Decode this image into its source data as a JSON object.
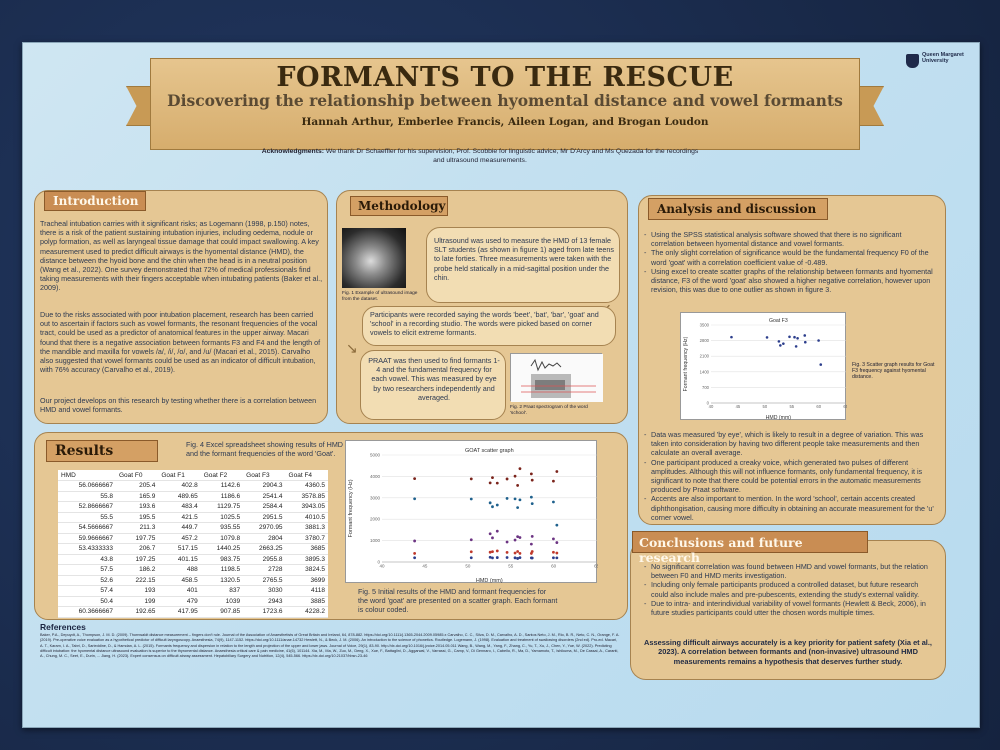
{
  "header": {
    "title": "FORMANTS TO THE RESCUE",
    "subtitle": "Discovering the relationship between hyomental distance and vowel formants",
    "authors": "Hannah Arthur, Emberlee Francis, Aileen Logan, and Brogan Loudon",
    "logo": "Queen Margaret University",
    "ack_label": "Acknowledgments:",
    "ack_text": "We thank Dr Schaeffler for his supervision, Prof. Scobbie for linguistic advice,  Mr D'Arcy and Ms Quezada for the recordings and ultrasound measurements."
  },
  "intro": {
    "heading": "Introduction",
    "p1": "Tracheal intubation carries with it significant risks; as Logemann (1998, p.150) notes, there is a risk of the patient sustaining intubation injuries, including oedema, nodule or polyp formation, as well as laryngeal tissue damage that could impact swallowing. A key measurement used to predict difficult airways is the hyomental distance (HMD), the distance between the hyoid bone and the chin when the head is in a neutral position (Wang et al., 2022). One survey demonstrated that 72% of medical professionals find taking measurements with their fingers acceptable when intubating patients (Baker et al., 2009).",
    "p2": "Due to the risks associated with poor intubation placement, research has been carried out to ascertain if factors such as vowel formants, the resonant frequencies of the vocal tract, could be used as a predictor of anatomical features in the upper airway.  Macari found that there is a negative association between formants F3 and F4 and the length of the mandible and maxilla for vowels /a/, /i/, /o/, and /u/ (Macari et al., 2015). Carvalho also suggested that vowel formants could be used as an indicator of difficult intubation, with 76% accuracy (Carvalho et al., 2019).",
    "p3": "Our project develops on this research by testing whether there is a correlation between HMD and vowel formants."
  },
  "methodology": {
    "heading": "Methodology",
    "box1": "Ultrasound was used to measure the HMD of 13 female SLT students (as shown in figure 1) aged from late teens to late forties. Three measurements were taken with the probe held statically in a mid-sagittal position under the chin.",
    "fig1_caption": "Fig. 1  Example of ultrasound image from the dataset.",
    "box2": "Participants were recorded saying the words 'beet', 'bat', 'bar', 'goat' and 'school' in a recording studio. The words were picked based on corner vowels to elicit extreme formants.",
    "box3": "PRAAT was then used to find formants 1-4 and the fundamental frequency for each vowel. This was measured by eye by two researchers independently and averaged.",
    "fig2_caption": "Fig. 2 Praat spectrogram of the word 'school'."
  },
  "results": {
    "heading": "Results",
    "fig4_caption": "Fig. 4  Excel spreadsheet showing results of HMD and the formant frequencies of the word 'Goat'.",
    "fig5_caption": "Fig. 5 Initial results of the HMD and formant frequencies for the word 'goat' are presented on a scatter graph. Each formant is colour coded.",
    "table": {
      "headers": [
        "HMD",
        "Goat F0",
        "Goat F1",
        "Goat F2",
        "Goat F3",
        "Goat F4"
      ],
      "rows": [
        [
          "56.0666667",
          "205.4",
          "402.8",
          "1142.6",
          "2904.3",
          "4360.5"
        ],
        [
          "55.8",
          "165.9",
          "489.65",
          "1186.6",
          "2541.4",
          "3578.85"
        ],
        [
          "52.8666667",
          "193.6",
          "483.4",
          "1129.75",
          "2584.4",
          "3943.05"
        ],
        [
          "55.5",
          "195.5",
          "421.5",
          "1025.5",
          "2951.5",
          "4010.5"
        ],
        [
          "54.5666667",
          "211.3",
          "449.7",
          "935.55",
          "2970.95",
          "3881.3"
        ],
        [
          "59.9666667",
          "197.75",
          "457.2",
          "1079.8",
          "2804",
          "3780.7"
        ],
        [
          "53.4333333",
          "206.7",
          "517.15",
          "1440.25",
          "2663.25",
          "3685"
        ],
        [
          "43.8",
          "197.25",
          "401.15",
          "983.75",
          "2955.8",
          "3895.3"
        ],
        [
          "57.5",
          "186.2",
          "488",
          "1198.5",
          "2728",
          "3824.5"
        ],
        [
          "52.6",
          "222.15",
          "458.5",
          "1320.5",
          "2765.5",
          "3699"
        ],
        [
          "57.4",
          "193",
          "401",
          "837",
          "3030",
          "4118"
        ],
        [
          "50.4",
          "199",
          "479",
          "1039",
          "2943",
          "3885"
        ],
        [
          "60.3666667",
          "192.65",
          "417.95",
          "907.85",
          "1723.6",
          "4228.2"
        ]
      ]
    }
  },
  "analysis": {
    "heading": "Analysis and discussion",
    "b1": "Using the SPSS statistical analysis software showed that there is no significant correlation between hyomental distance and vowel formants.",
    "b2": "The only slight correlation of significance would be the fundamental frequency F0 of the word 'goat' with a correlation coefficient value of -0.489.",
    "b3": "Using excel to create scatter graphs of the relationship between formants and hyomental distance, F3 of the word 'goat' also showed a higher negative correlation, however upon revision, this was due to one outlier as shown in figure 3.",
    "fig3_caption": "Fig. 3 Scatter graph results for Goat F3 frequency against hyomental distance.",
    "b4": "Data was measured 'by eye', which is likely to result in a degree of variation. This was taken into consideration by having two different people take measurements and then calculate an overall average.",
    "b5": "One participant produced a creaky voice, which generated two pulses of different amplitudes. Although this will not influence formants, only fundamental frequency, it is significant to note that there could be potential errors in the automatic measurements produced by Praat software.",
    "b6": "Accents are also important to mention. In the word 'school', certain accents created diphthongisation, causing more difficulty in obtaining an accurate measurement for the 'u' corner vowel."
  },
  "conclusions": {
    "heading": "Conclusions and future research",
    "b1": "No significant correlation was found between HMD and vowel formants, but the relation between F0 and HMD merits investigation.",
    "b2": "Including only female participants produced a controlled dataset, but future research could also include males and pre-pubescents, extending the study's external validity.",
    "b3": "Due to intra- and interindividual variability of vowel formants (Hewlett & Beck, 2006), in future studies participants could utter the chosen words multiple times.",
    "final": "Assessing difficult airways accurately is a key priority for patient safety (Xia et al., 2023). A correlation between formants and (non-invasive) ultrasound HMD measurements remains a hypothesis that deserves further study."
  },
  "references": {
    "heading": "References",
    "body": "Baker, P.A., Depuydt, A., Thompson, J. M. D. (2009). Thornwaldt distance measurement – fingers don't rule. Journal of the Association of Anaesthetists of Great Britain and Ireland, 64, 878-882. https://doi.org/10.1111/j.1365-2044.2009.05985.x  Carvalho, C. C., Silva, D. M., Carvalho, A. D., Santos Neto, J. M., Rio, B. R., Neto, C. N., Orange, F. A. (2019). Pre-operative voice evaluation as a hypothetical predictor of difficult laryngoscopy. Anaesthesia, 74(9), 1147-1152. https://doi.org/10.1111/anae.14732  Hewlett, N., & Beck, J. M. (2006). An introduction to the science of phonetics. Routledge.  Logemann, J. (1998). Evaluation and treatment of swallowing disorders (2nd ed). Pro-ed.  Macari, A. T., Karam, I. A., Tabri, D., Sarieddine, D., & Hamdan, A. L. (2015). Formants frequency and dispersion in relation to the length and projection of the upper and lower jaws. Journal of Voice, 29(1), 83-90. http://dx.doi.org/10.1016/j.jvoice.2014.05.011  Wang, B., Wang, M., Yang, F., Zhang, C., Yu, T., Xu, J., Chen, Y., Yue, W. (2022). Predicting difficult intubation: the hyomental distance ultrasound evaluation is superior to the thyromental distance. Anaesthesia critical care & pain medicine, 41(6), 101144.  Xia, M., Ma, W., Zuo, M., Deng, X., Xue, F., Battaglini, D., Aggarwal, V., Varrassi, G., Camp, V., Di Gennaro, I., Cabello, R., Ma, D., Yamamoto, T., Ishikuma, M., De Cassai, A., Caranti, A., Chung, M. C., Seet, E., Durin, ... Jiang, H. (2023). Expert consensus on difficult airway assessment. Hepatobiliary Surgery and Nutrition, 12(4), 545-566. https://dx.doi.org/10.21037/hbsn-23-46"
  },
  "chart_data": [
    {
      "type": "scatter",
      "title": "GOAT scatter graph",
      "xlabel": "HMD (mm)",
      "ylabel": "Formant frequency (Hz)",
      "ylim": [
        0,
        5000
      ],
      "xlim": [
        40,
        65
      ],
      "grid": true,
      "legend": "bottom",
      "series": [
        {
          "color": "#2c3e8c",
          "x": [
            56.07,
            55.8,
            52.87,
            55.5,
            54.57,
            59.97,
            53.43,
            43.8,
            57.5,
            52.6,
            57.4,
            50.4,
            60.37
          ],
          "y": [
            205.4,
            165.9,
            193.6,
            195.5,
            211.3,
            197.75,
            206.7,
            197.25,
            186.2,
            222.15,
            193,
            199,
            192.65
          ]
        },
        {
          "color": "#c0392b",
          "x": [
            56.07,
            55.8,
            52.87,
            55.5,
            54.57,
            59.97,
            53.43,
            43.8,
            57.5,
            52.6,
            57.4,
            50.4,
            60.37
          ],
          "y": [
            402.8,
            489.65,
            483.4,
            421.5,
            449.7,
            457.2,
            517.15,
            401.15,
            488,
            458.5,
            401,
            479,
            417.95
          ]
        },
        {
          "color": "#6c3483",
          "x": [
            56.07,
            55.8,
            52.87,
            55.5,
            54.57,
            59.97,
            53.43,
            43.8,
            57.5,
            52.6,
            57.4,
            50.4,
            60.37
          ],
          "y": [
            1142.6,
            1186.6,
            1129.75,
            1025.5,
            935.55,
            1079.8,
            1440.25,
            983.75,
            1198.5,
            1320.5,
            837,
            1039,
            907.85
          ]
        },
        {
          "color": "#1f618d",
          "x": [
            56.07,
            55.8,
            52.87,
            55.5,
            54.57,
            59.97,
            53.43,
            43.8,
            57.5,
            52.6,
            57.4,
            50.4,
            60.37
          ],
          "y": [
            2904.3,
            2541.4,
            2584.4,
            2951.5,
            2970.95,
            2804,
            2663.25,
            2955.8,
            2728,
            2765.5,
            3030,
            2943,
            1723.6
          ]
        },
        {
          "color": "#7b241c",
          "x": [
            56.07,
            55.8,
            52.87,
            55.5,
            54.57,
            59.97,
            53.43,
            43.8,
            57.5,
            52.6,
            57.4,
            50.4,
            60.37
          ],
          "y": [
            4360.5,
            3578.85,
            3943.05,
            4010.5,
            3881.3,
            3780.7,
            3685,
            3895.3,
            3824.5,
            3699,
            4118,
            3885,
            4228.2
          ]
        }
      ]
    },
    {
      "type": "scatter",
      "title": "Goat F3",
      "xlabel": "HMD (mm)",
      "ylabel": "Formant frequency (Hz)",
      "ylim": [
        0,
        3500
      ],
      "xlim": [
        40,
        65
      ],
      "grid": true,
      "series": [
        {
          "color": "#2c3e8c",
          "x": [
            56.07,
            55.8,
            52.87,
            55.5,
            54.57,
            59.97,
            53.43,
            43.8,
            57.5,
            52.6,
            57.4,
            50.4,
            60.37
          ],
          "y": [
            2904.3,
            2541.4,
            2584.4,
            2951.5,
            2970.95,
            2804,
            2663.25,
            2955.8,
            2728,
            2765.5,
            3030,
            2943,
            1723.6
          ]
        }
      ]
    }
  ]
}
